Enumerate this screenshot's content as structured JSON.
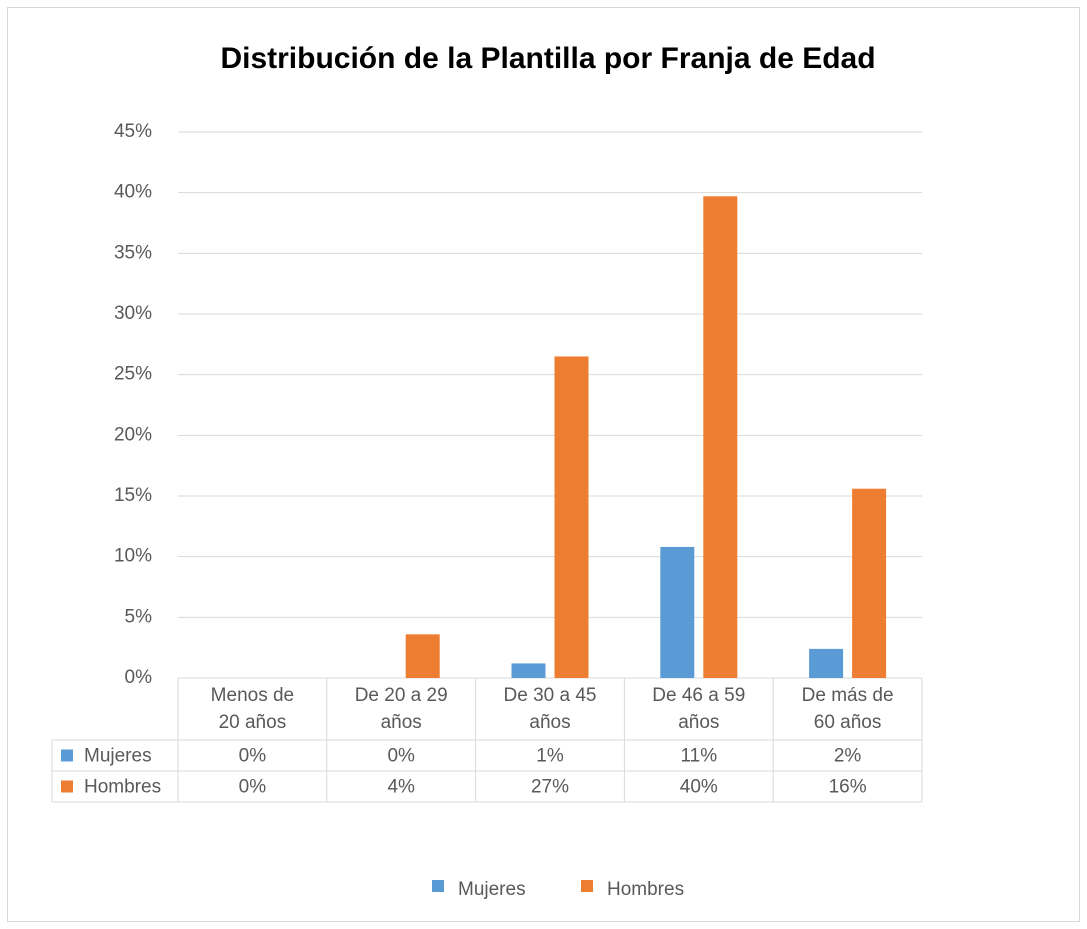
{
  "chart_data": {
    "type": "bar",
    "title": "Distribución de la Plantilla por Franja de Edad",
    "categories": [
      "Menos de 20 años",
      "De 20 a 29 años",
      "De 30 a 45 años",
      "De 46 a 59 años",
      "De más de 60 años"
    ],
    "series": [
      {
        "name": "Mujeres",
        "color": "#5b9bd5",
        "values": [
          0,
          0,
          1.2,
          10.8,
          2.4
        ],
        "value_labels": [
          "0%",
          "0%",
          "1%",
          "11%",
          "2%"
        ]
      },
      {
        "name": "Hombres",
        "color": "#ed7d31",
        "values": [
          0,
          3.6,
          26.5,
          39.7,
          15.6
        ],
        "value_labels": [
          "0%",
          "4%",
          "27%",
          "40%",
          "16%"
        ]
      }
    ],
    "ylim": [
      0,
      45
    ],
    "yticks": [
      {
        "value": 0,
        "label": "0%"
      },
      {
        "value": 5,
        "label": "5%"
      },
      {
        "value": 10,
        "label": "10%"
      },
      {
        "value": 15,
        "label": "15%"
      },
      {
        "value": 20,
        "label": "20%"
      },
      {
        "value": 25,
        "label": "25%"
      },
      {
        "value": 30,
        "label": "30%"
      },
      {
        "value": 35,
        "label": "35%"
      },
      {
        "value": 40,
        "label": "40%"
      },
      {
        "value": 45,
        "label": "45%"
      }
    ],
    "grid": true,
    "legend": "bottom"
  }
}
